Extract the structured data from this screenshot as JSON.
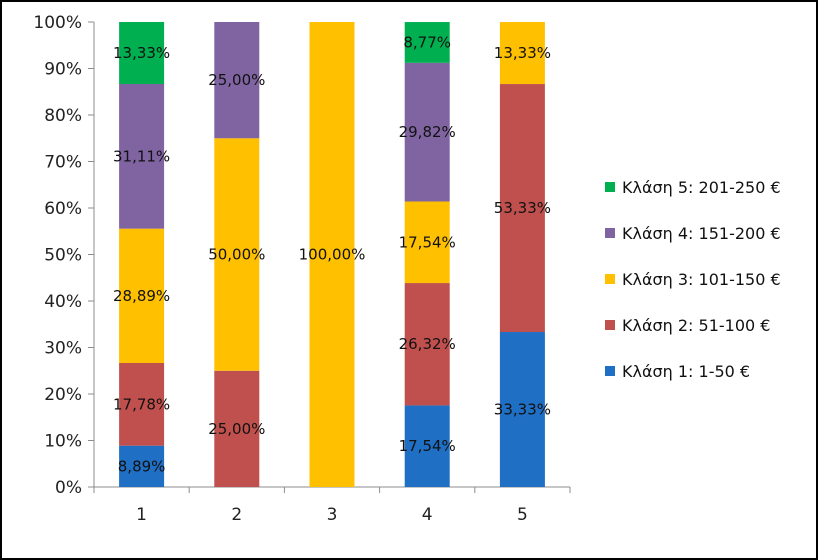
{
  "chart_data": {
    "type": "bar",
    "stacked": true,
    "percent": true,
    "title": "",
    "xlabel": "",
    "ylabel": "",
    "ylim": [
      0,
      100
    ],
    "y_ticks": [
      "0%",
      "10%",
      "20%",
      "30%",
      "40%",
      "50%",
      "60%",
      "70%",
      "80%",
      "90%",
      "100%"
    ],
    "categories": [
      "1",
      "2",
      "3",
      "4",
      "5"
    ],
    "grid": false,
    "legend_position": "right",
    "series": [
      {
        "name": "Κλάση 1: 1-50 €",
        "color": "#1F6FC5",
        "values": [
          8.89,
          0,
          0,
          17.54,
          33.33
        ],
        "labels": [
          "8,89%",
          "",
          "",
          "17,54%",
          "33,33%"
        ]
      },
      {
        "name": "Κλάση 2: 51-100 €",
        "color": "#C0504D",
        "values": [
          17.78,
          25.0,
          0,
          26.32,
          53.33
        ],
        "labels": [
          "17,78%",
          "25,00%",
          "",
          "26,32%",
          "53,33%"
        ]
      },
      {
        "name": "Κλάση 3: 101-150 €",
        "color": "#FFC000",
        "values": [
          28.89,
          50.0,
          100.0,
          17.54,
          13.33
        ],
        "labels": [
          "28,89%",
          "50,00%",
          "100,00%",
          "17,54%",
          "13,33%"
        ]
      },
      {
        "name": "Κλάση 4: 151-200 €",
        "color": "#8064A2",
        "values": [
          31.11,
          25.0,
          0,
          29.82,
          0
        ],
        "labels": [
          "31,11%",
          "25,00%",
          "",
          "29,82%",
          ""
        ]
      },
      {
        "name": "Κλάση 5: 201-250 €",
        "color": "#00B050",
        "values": [
          13.33,
          0,
          0,
          8.77,
          0
        ],
        "labels": [
          "13,33%",
          "",
          "",
          "8,77%",
          ""
        ]
      }
    ]
  }
}
